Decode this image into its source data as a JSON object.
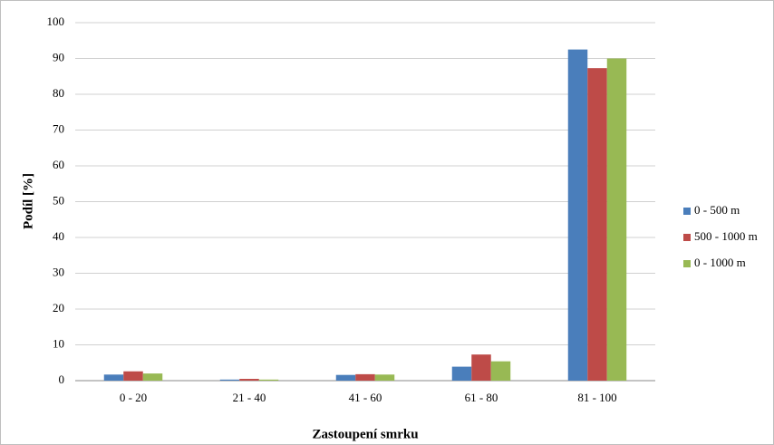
{
  "chart_data": {
    "type": "bar",
    "x_label": "Zastoupení smrku",
    "y_label": "Podíl [%]",
    "categories": [
      "0 - 20",
      "21 - 40",
      "41 - 60",
      "61 - 80",
      "81 - 100"
    ],
    "series": [
      {
        "name": "0 - 500 m",
        "color": "#4a7ebb",
        "values": [
          1.7,
          0.3,
          1.6,
          3.9,
          92.5
        ]
      },
      {
        "name": "500 - 1000 m",
        "color": "#be4b48",
        "values": [
          2.6,
          0.5,
          1.8,
          7.3,
          87.3
        ]
      },
      {
        "name": "0 - 1000 m",
        "color": "#98b954",
        "values": [
          2.0,
          0.3,
          1.7,
          5.4,
          90.0
        ]
      }
    ],
    "ylim": [
      0,
      100
    ],
    "yticks": [
      0,
      10,
      20,
      30,
      40,
      50,
      60,
      70,
      80,
      90,
      100
    ],
    "grid": true,
    "legend": "right"
  }
}
